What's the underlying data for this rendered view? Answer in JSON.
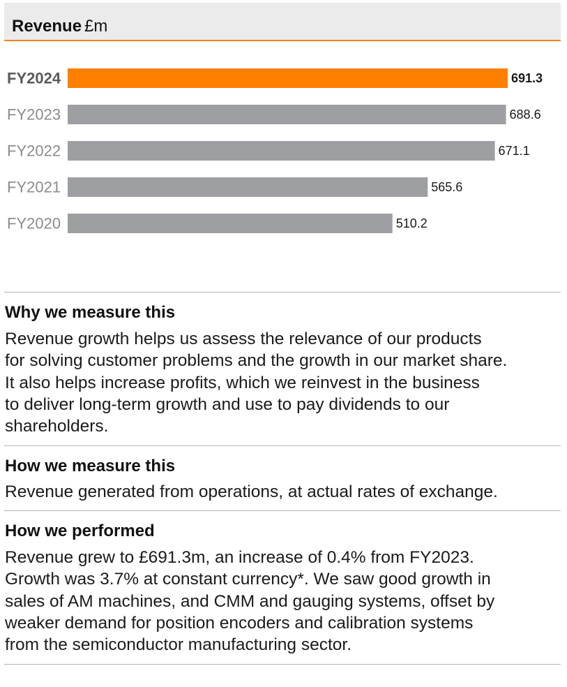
{
  "header": {
    "title": "Revenue",
    "unit": "£m"
  },
  "colors": {
    "highlight": "#ff7f00",
    "bar": "#9d9fa2",
    "highlight_label": "#5a5a5a",
    "label": "#8c8c8c",
    "accent_line": "#f5821f"
  },
  "chart_data": {
    "type": "bar",
    "orientation": "horizontal",
    "title": "Revenue £m",
    "categories": [
      "FY2024",
      "FY2023",
      "FY2022",
      "FY2021",
      "FY2020"
    ],
    "values": [
      691.3,
      688.6,
      671.1,
      565.6,
      510.2
    ],
    "highlight": "FY2024",
    "xlim": [
      0,
      691.3
    ],
    "value_labels": [
      "691.3",
      "688.6",
      "671.1",
      "565.6",
      "510.2"
    ],
    "grid": false,
    "legend": "none"
  },
  "sections": [
    {
      "heading": "Why we measure this",
      "lines": [
        "Revenue growth helps us assess the relevance of our products",
        "for solving customer problems and the growth in our market share.",
        "It also helps increase profits, which we reinvest in the business",
        "to deliver long-term growth and use to pay dividends to our",
        "shareholders."
      ]
    },
    {
      "heading": "How we measure this",
      "lines": [
        "Revenue generated from operations, at actual rates of exchange."
      ]
    },
    {
      "heading": "How we performed",
      "lines": [
        "Revenue grew to £691.3m, an increase of 0.4% from FY2023.",
        "Growth was 3.7% at constant currency*. We saw good growth in",
        "sales of AM machines, and CMM and gauging systems, offset by",
        "weaker demand for position encoders and calibration systems",
        "from the semiconductor manufacturing sector."
      ]
    }
  ]
}
